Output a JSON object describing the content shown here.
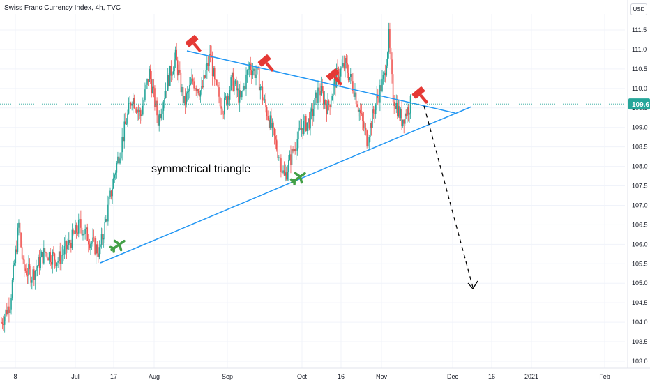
{
  "chart_data": {
    "type": "candlestick",
    "title": "Swiss Franc Currency Index, 4h, TVC",
    "currency": "USD",
    "last_price": "109.6",
    "annotation": "symmetrical triangle",
    "yaxis": {
      "ylim": [
        102.95,
        111.8
      ],
      "ticks": [
        "111.5",
        "111.0",
        "110.5",
        "110.0",
        "109.5",
        "109.0",
        "108.5",
        "108.0",
        "107.5",
        "107.0",
        "106.5",
        "106.0",
        "105.5",
        "105.0",
        "104.5",
        "104.0",
        "103.5",
        "103.0"
      ]
    },
    "xaxis": {
      "ticks": [
        "8",
        "Jul",
        "17",
        "Aug",
        "Sep",
        "Oct",
        "16",
        "Nov",
        "Dec",
        "16",
        "2021",
        "Feb"
      ]
    },
    "price_path": [
      {
        "day": 0,
        "price": 104.0
      },
      {
        "day": 4,
        "price": 104.5
      },
      {
        "day": 6,
        "price": 105.5
      },
      {
        "day": 8,
        "price": 106.5
      },
      {
        "day": 10,
        "price": 105.4
      },
      {
        "day": 14,
        "price": 105.2
      },
      {
        "day": 20,
        "price": 105.8
      },
      {
        "day": 26,
        "price": 105.6
      },
      {
        "day": 30,
        "price": 105.9
      },
      {
        "day": 36,
        "price": 106.5
      },
      {
        "day": 42,
        "price": 106.0
      },
      {
        "day": 45,
        "price": 105.8
      },
      {
        "day": 48,
        "price": 106.6
      },
      {
        "day": 52,
        "price": 107.8
      },
      {
        "day": 56,
        "price": 108.8
      },
      {
        "day": 60,
        "price": 109.8
      },
      {
        "day": 64,
        "price": 109.3
      },
      {
        "day": 68,
        "price": 110.4
      },
      {
        "day": 72,
        "price": 109.2
      },
      {
        "day": 76,
        "price": 110.1
      },
      {
        "day": 80,
        "price": 110.8
      },
      {
        "day": 84,
        "price": 109.6
      },
      {
        "day": 88,
        "price": 110.2
      },
      {
        "day": 92,
        "price": 109.9
      },
      {
        "day": 96,
        "price": 110.9
      },
      {
        "day": 98,
        "price": 110.1
      },
      {
        "day": 102,
        "price": 109.5
      },
      {
        "day": 106,
        "price": 110.2
      },
      {
        "day": 110,
        "price": 109.7
      },
      {
        "day": 114,
        "price": 110.6
      },
      {
        "day": 118,
        "price": 110.3
      },
      {
        "day": 120,
        "price": 109.8
      },
      {
        "day": 124,
        "price": 109.0
      },
      {
        "day": 128,
        "price": 108.2
      },
      {
        "day": 130,
        "price": 107.7
      },
      {
        "day": 134,
        "price": 108.4
      },
      {
        "day": 138,
        "price": 109.0
      },
      {
        "day": 142,
        "price": 109.2
      },
      {
        "day": 146,
        "price": 110.0
      },
      {
        "day": 150,
        "price": 109.5
      },
      {
        "day": 154,
        "price": 110.3
      },
      {
        "day": 158,
        "price": 110.6
      },
      {
        "day": 162,
        "price": 110.0
      },
      {
        "day": 166,
        "price": 109.1
      },
      {
        "day": 168,
        "price": 108.7
      },
      {
        "day": 172,
        "price": 109.6
      },
      {
        "day": 176,
        "price": 110.3
      },
      {
        "day": 178,
        "price": 111.3
      },
      {
        "day": 180,
        "price": 109.8
      },
      {
        "day": 184,
        "price": 109.2
      },
      {
        "day": 188,
        "price": 109.6
      }
    ],
    "up_color": "#26a69a",
    "down_color": "#ef5350",
    "line_color": "#2196f3",
    "marker_color": "#e53935",
    "buy_marker_color": "#43a047",
    "last_price_bg": "#26a69a",
    "projection_color": "#000000"
  }
}
